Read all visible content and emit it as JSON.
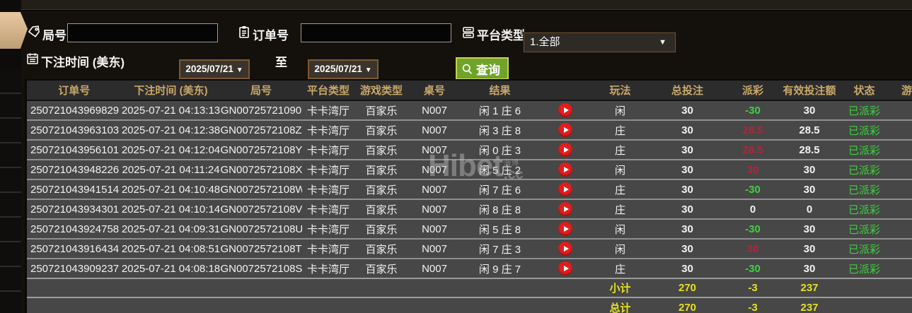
{
  "filters": {
    "game_no": {
      "label": "局号",
      "value": ""
    },
    "order_no": {
      "label": "订单号",
      "value": ""
    },
    "platform": {
      "label": "平台类型",
      "value": "1.全部",
      "caret": "▼"
    },
    "bet_time": {
      "label": "下注时间 (美东)",
      "from": "2025/07/21",
      "to": "2025/07/21",
      "separator": "至",
      "caret": "▼"
    },
    "query_button": {
      "label": "查询"
    }
  },
  "watermark": {
    "brand": "Hibet",
    "suffix": ".cc",
    "stamp": "海博"
  },
  "table": {
    "headers": [
      "订单号",
      "下注时间 (美东)",
      "局号",
      "平台类型",
      "游戏类型",
      "桌号",
      "结果",
      "",
      "玩法",
      "总投注",
      "派彩",
      "有效投注额",
      "状态",
      "游戏"
    ],
    "rows": [
      {
        "order_no": "250721043969829",
        "bet_time": "2025-07-21 04:13:13",
        "game_no": "GN00725721090",
        "platform": "卡卡湾厅",
        "game_type": "百家乐",
        "table_no": "N007",
        "result": "闲 1 庄 6",
        "play": "闲",
        "total_bet": "30",
        "payout": "-30",
        "payout_color": "green",
        "valid_bet": "30",
        "status": "已派彩"
      },
      {
        "order_no": "250721043963103",
        "bet_time": "2025-07-21 04:12:38",
        "game_no": "GN0072572108Z",
        "platform": "卡卡湾厅",
        "game_type": "百家乐",
        "table_no": "N007",
        "result": "闲 3 庄 8",
        "play": "庄",
        "total_bet": "30",
        "payout": "28.5",
        "payout_color": "red",
        "valid_bet": "28.5",
        "status": "已派彩"
      },
      {
        "order_no": "250721043956101",
        "bet_time": "2025-07-21 04:12:04",
        "game_no": "GN0072572108Y",
        "platform": "卡卡湾厅",
        "game_type": "百家乐",
        "table_no": "N007",
        "result": "闲 0 庄 3",
        "play": "庄",
        "total_bet": "30",
        "payout": "28.5",
        "payout_color": "red",
        "valid_bet": "28.5",
        "status": "已派彩"
      },
      {
        "order_no": "250721043948226",
        "bet_time": "2025-07-21 04:11:24",
        "game_no": "GN0072572108X",
        "platform": "卡卡湾厅",
        "game_type": "百家乐",
        "table_no": "N007",
        "result": "闲 5 庄 2",
        "play": "闲",
        "total_bet": "30",
        "payout": "30",
        "payout_color": "red",
        "valid_bet": "30",
        "status": "已派彩"
      },
      {
        "order_no": "250721043941514",
        "bet_time": "2025-07-21 04:10:48",
        "game_no": "GN0072572108W",
        "platform": "卡卡湾厅",
        "game_type": "百家乐",
        "table_no": "N007",
        "result": "闲 7 庄 6",
        "play": "庄",
        "total_bet": "30",
        "payout": "-30",
        "payout_color": "green",
        "valid_bet": "30",
        "status": "已派彩"
      },
      {
        "order_no": "250721043934301",
        "bet_time": "2025-07-21 04:10:14",
        "game_no": "GN0072572108V",
        "platform": "卡卡湾厅",
        "game_type": "百家乐",
        "table_no": "N007",
        "result": "闲 8 庄 8",
        "play": "庄",
        "total_bet": "30",
        "payout": "0",
        "payout_color": "white",
        "valid_bet": "0",
        "status": "已派彩"
      },
      {
        "order_no": "250721043924758",
        "bet_time": "2025-07-21 04:09:31",
        "game_no": "GN0072572108U",
        "platform": "卡卡湾厅",
        "game_type": "百家乐",
        "table_no": "N007",
        "result": "闲 5 庄 8",
        "play": "闲",
        "total_bet": "30",
        "payout": "-30",
        "payout_color": "green",
        "valid_bet": "30",
        "status": "已派彩"
      },
      {
        "order_no": "250721043916434",
        "bet_time": "2025-07-21 04:08:51",
        "game_no": "GN0072572108T",
        "platform": "卡卡湾厅",
        "game_type": "百家乐",
        "table_no": "N007",
        "result": "闲 7 庄 3",
        "play": "闲",
        "total_bet": "30",
        "payout": "30",
        "payout_color": "red",
        "valid_bet": "30",
        "status": "已派彩"
      },
      {
        "order_no": "250721043909237",
        "bet_time": "2025-07-21 04:08:18",
        "game_no": "GN0072572108S",
        "platform": "卡卡湾厅",
        "game_type": "百家乐",
        "table_no": "N007",
        "result": "闲 9 庄 7",
        "play": "庄",
        "total_bet": "30",
        "payout": "-30",
        "payout_color": "green",
        "valid_bet": "30",
        "status": "已派彩"
      }
    ],
    "summary": [
      {
        "label": "小计",
        "total_bet": "270",
        "payout": "-3",
        "valid_bet": "237"
      },
      {
        "label": "总计",
        "total_bet": "270",
        "payout": "-3",
        "valid_bet": "237"
      }
    ]
  },
  "colors": {
    "panel_bg": "#14100b",
    "row_bg": "#474747",
    "header_bg": "#2c2c2c",
    "header_text_gold": "#c9a86a",
    "win_red": "#b2243c",
    "loss_green": "#3fd23f",
    "status_green": "#3cd23c",
    "summary_yellow": "#e6e11f",
    "button_green": "#6fa32b",
    "button_border": "#c9d24d",
    "accent_brown_border": "#7c5932",
    "play_button_red": "#e21d1d"
  }
}
